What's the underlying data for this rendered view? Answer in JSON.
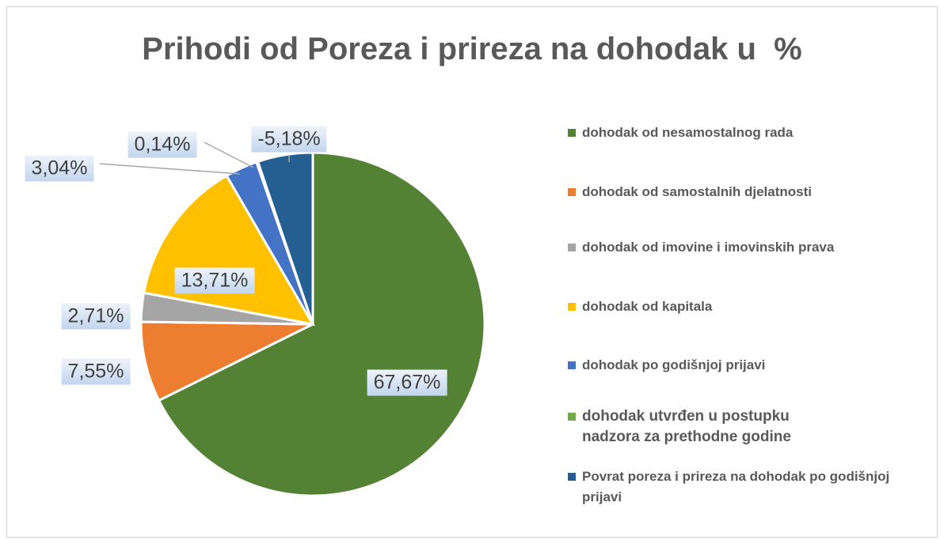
{
  "chart_data": {
    "type": "pie",
    "title": "Prihodi od Poreza i prireza na dohodak u  %",
    "categories": [
      "dohodak od nesamostalnog rada",
      "dohodak od samostalnih djelatnosti",
      "dohodak od imovine i imovinskih prava",
      "dohodak od kapitala",
      " dohodak po godišnjoj prijavi",
      "dohodak utvrđen u postupku nadzora za prethodne godine",
      "Povrat poreza i prireza na dohodak po godišnjoj prijavi"
    ],
    "values": [
      67.67,
      7.55,
      2.71,
      13.71,
      3.04,
      0.14,
      -5.18
    ],
    "value_labels": [
      "67,67%",
      "7,55%",
      "2,71%",
      "13,71%",
      "3,04%",
      "0,14%",
      "-5,18%"
    ],
    "colors": [
      "#548235",
      "#ed7d31",
      "#a5a5a5",
      "#ffc000",
      "#4472c4",
      "#70ad47",
      "#255e91"
    ],
    "legend": "right"
  }
}
